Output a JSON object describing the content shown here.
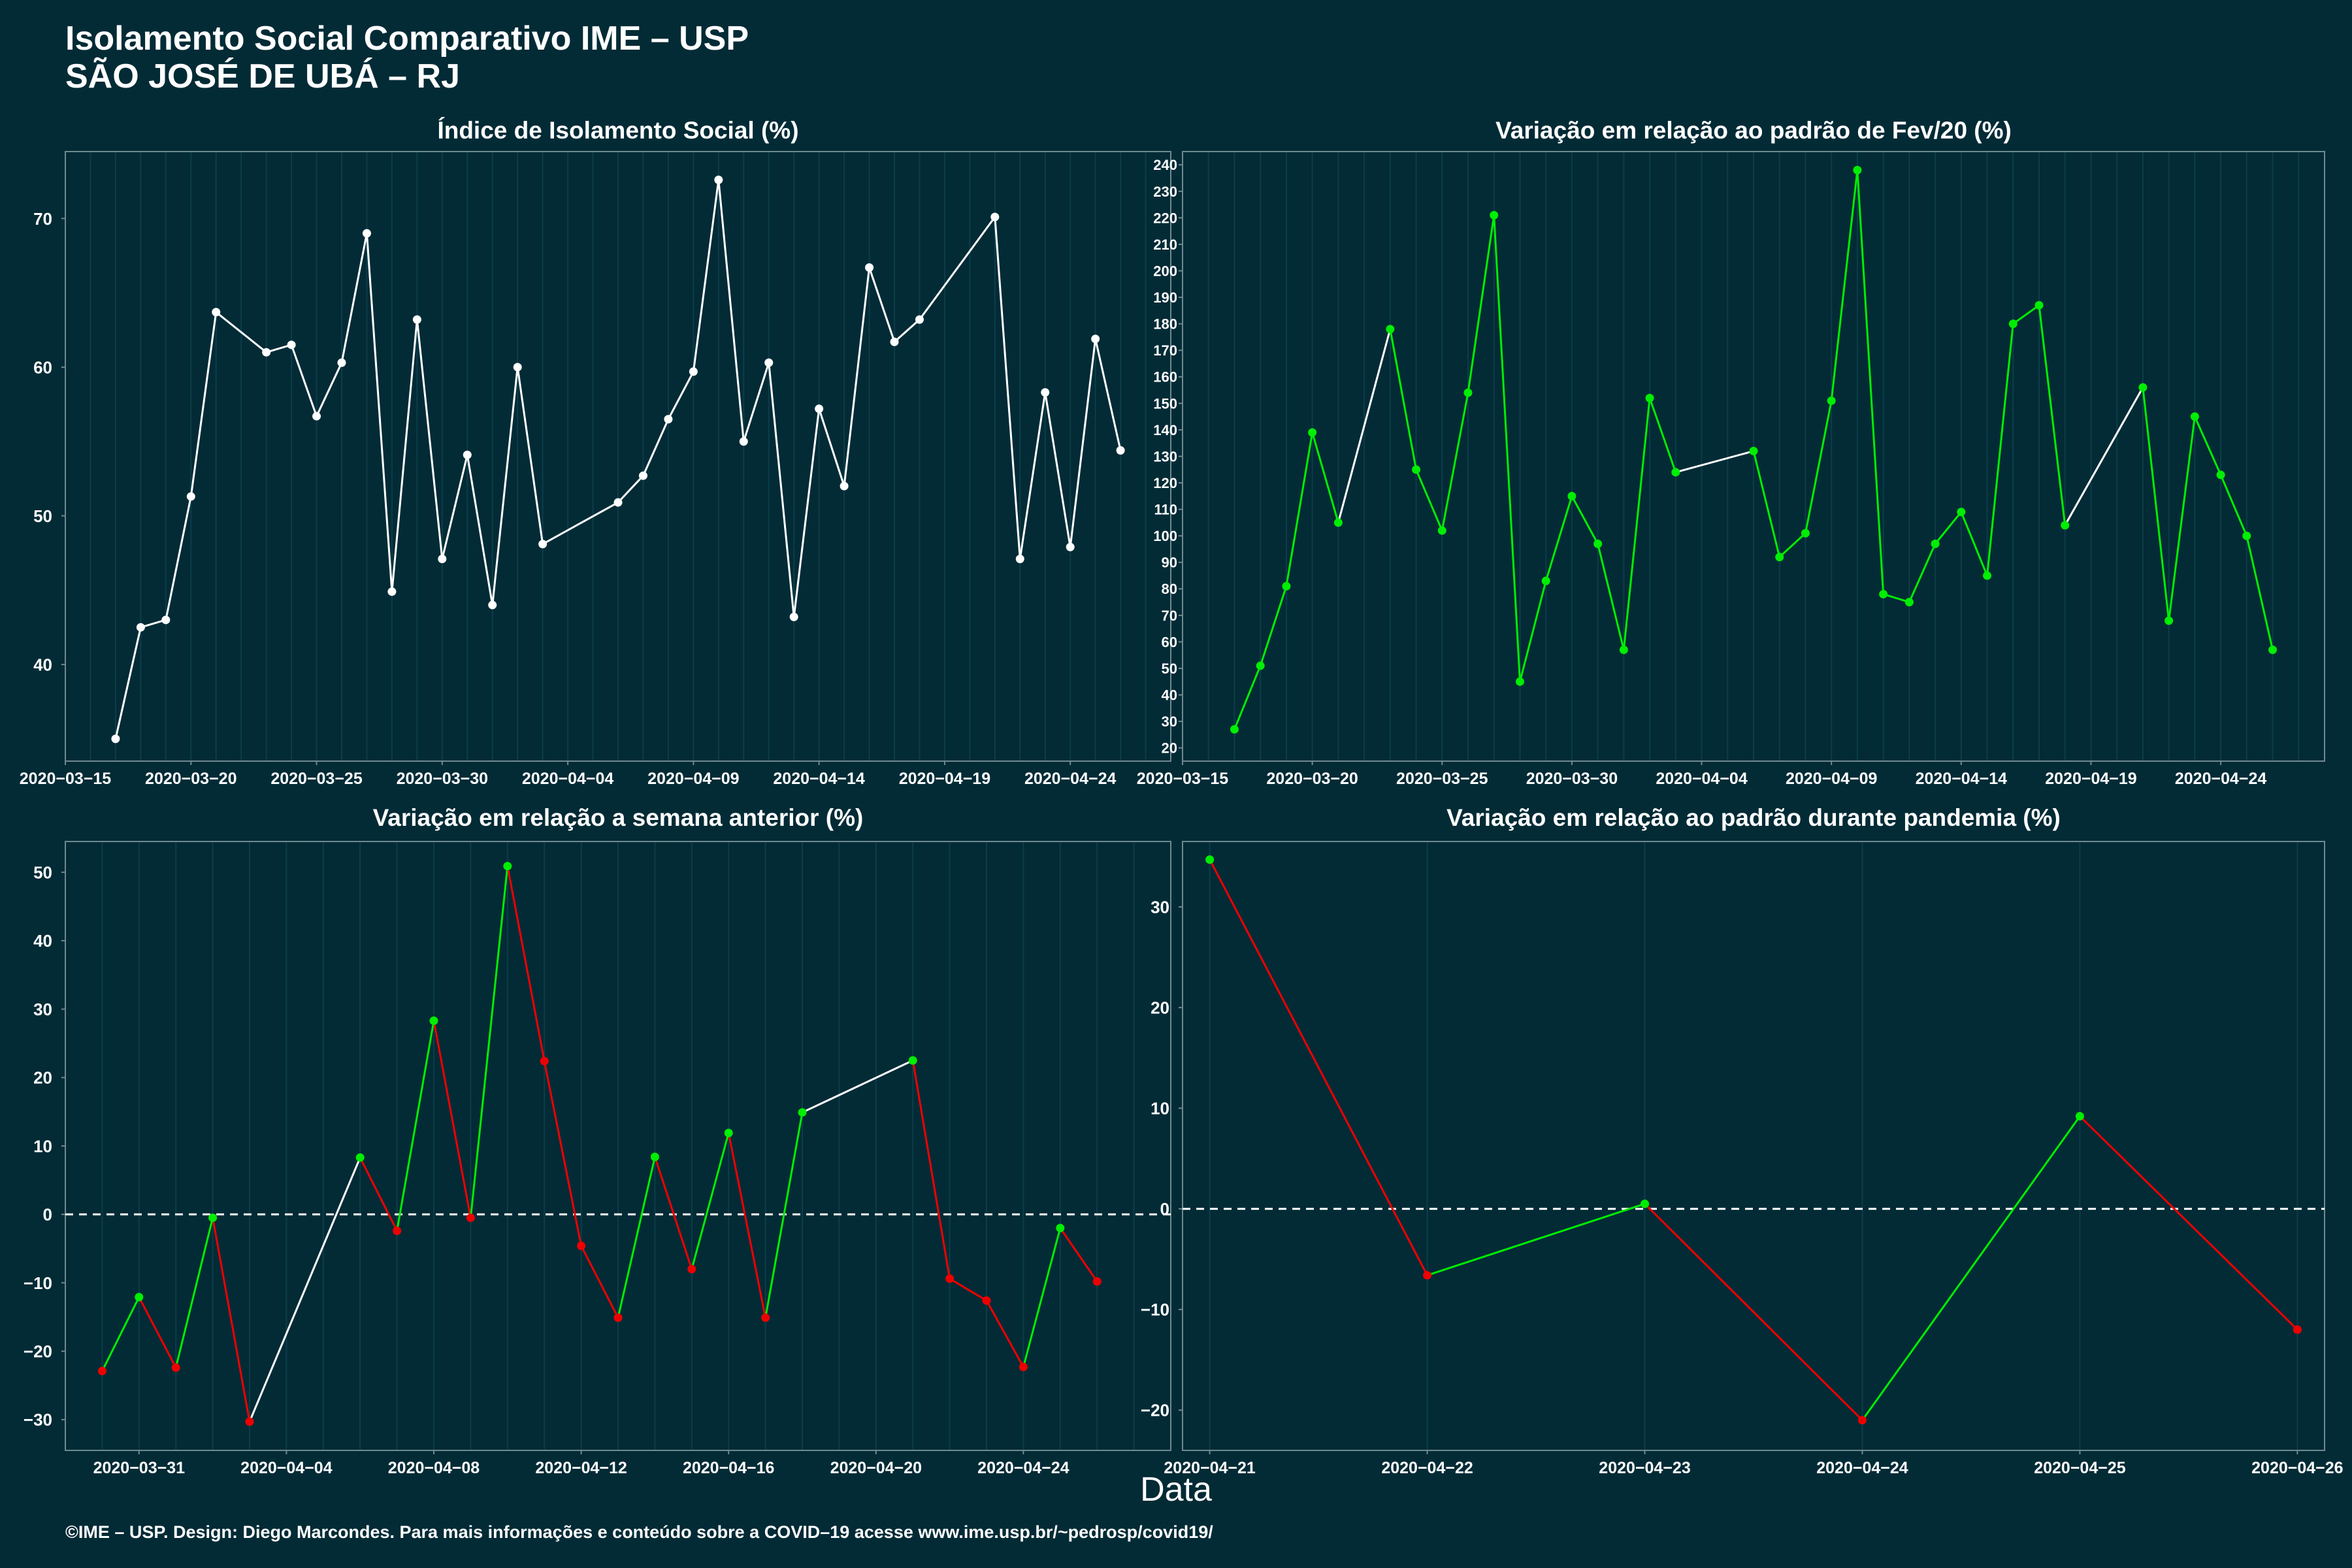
{
  "header": {
    "title_line1": "Isolamento Social Comparativo IME – USP",
    "title_line2": "SÃO JOSÉ DE UBÁ – RJ"
  },
  "x_axis_label": "Data",
  "footer": "©IME – USP. Design: Diego Marcondes. Para mais informações e conteúdo sobre a COVID–19 acesse www.ime.usp.br/~pedrosp/covid19/",
  "colors": {
    "background": "#022b36",
    "neutral": "#ffffff",
    "up": "#00ee00",
    "down": "#ee0000",
    "grid": "#0c3d49",
    "frame": "#6f8a90"
  },
  "chart_data": [
    {
      "id": "isolamento",
      "type": "line",
      "title": "Índice de Isolamento Social (%)",
      "x_start": "2020-03-15",
      "x_domain": [
        "2020-03-15",
        "2020-04-28"
      ],
      "y_domain": [
        33.5,
        74.5
      ],
      "x_ticks": [
        "2020-03-15",
        "2020-03-20",
        "2020-03-25",
        "2020-03-30",
        "2020-04-04",
        "2020-04-09",
        "2020-04-14",
        "2020-04-19",
        "2020-04-24"
      ],
      "y_ticks": [
        40,
        50,
        60,
        70
      ],
      "zero_line": false,
      "color_mode": "white",
      "points": [
        {
          "x": "2020-03-17",
          "y": 35.0
        },
        {
          "x": "2020-03-18",
          "y": 42.5
        },
        {
          "x": "2020-03-19",
          "y": 43.0
        },
        {
          "x": "2020-03-20",
          "y": 51.3
        },
        {
          "x": "2020-03-21",
          "y": 63.7
        },
        {
          "x": "2020-03-23",
          "y": 61.0
        },
        {
          "x": "2020-03-24",
          "y": 61.5
        },
        {
          "x": "2020-03-25",
          "y": 56.7
        },
        {
          "x": "2020-03-26",
          "y": 60.3
        },
        {
          "x": "2020-03-27",
          "y": 69.0
        },
        {
          "x": "2020-03-28",
          "y": 44.9
        },
        {
          "x": "2020-03-29",
          "y": 63.2
        },
        {
          "x": "2020-03-30",
          "y": 47.1
        },
        {
          "x": "2020-03-31",
          "y": 54.1
        },
        {
          "x": "2020-04-01",
          "y": 44.0
        },
        {
          "x": "2020-04-02",
          "y": 60.0
        },
        {
          "x": "2020-04-03",
          "y": 48.1
        },
        {
          "x": "2020-04-06",
          "y": 50.9
        },
        {
          "x": "2020-04-07",
          "y": 52.7
        },
        {
          "x": "2020-04-08",
          "y": 56.5
        },
        {
          "x": "2020-04-09",
          "y": 59.7
        },
        {
          "x": "2020-04-10",
          "y": 72.6
        },
        {
          "x": "2020-04-11",
          "y": 55.0
        },
        {
          "x": "2020-04-12",
          "y": 60.3
        },
        {
          "x": "2020-04-13",
          "y": 43.2
        },
        {
          "x": "2020-04-14",
          "y": 57.2
        },
        {
          "x": "2020-04-15",
          "y": 52.0
        },
        {
          "x": "2020-04-16",
          "y": 66.7
        },
        {
          "x": "2020-04-17",
          "y": 61.7
        },
        {
          "x": "2020-04-18",
          "y": 63.2
        },
        {
          "x": "2020-04-21",
          "y": 70.1
        },
        {
          "x": "2020-04-22",
          "y": 47.1
        },
        {
          "x": "2020-04-23",
          "y": 58.3
        },
        {
          "x": "2020-04-24",
          "y": 47.9
        },
        {
          "x": "2020-04-25",
          "y": 61.9
        },
        {
          "x": "2020-04-26",
          "y": 54.4
        }
      ]
    },
    {
      "id": "fev20",
      "type": "line",
      "title": "Variação em relação ao padrão de Fev/20 (%)",
      "x_start": "2020-03-15",
      "x_domain": [
        "2020-03-15",
        "2020-04-28"
      ],
      "y_domain": [
        15,
        245
      ],
      "x_ticks": [
        "2020-03-15",
        "2020-03-20",
        "2020-03-25",
        "2020-03-30",
        "2020-04-04",
        "2020-04-09",
        "2020-04-14",
        "2020-04-19",
        "2020-04-24"
      ],
      "y_ticks": [
        20,
        30,
        40,
        50,
        60,
        70,
        80,
        90,
        100,
        110,
        120,
        130,
        140,
        150,
        160,
        170,
        180,
        190,
        200,
        210,
        220,
        230,
        240
      ],
      "zero_line": false,
      "color_mode": "green",
      "points": [
        {
          "x": "2020-03-17",
          "y": 27
        },
        {
          "x": "2020-03-18",
          "y": 51
        },
        {
          "x": "2020-03-19",
          "y": 81
        },
        {
          "x": "2020-03-20",
          "y": 139
        },
        {
          "x": "2020-03-21",
          "y": 105
        },
        {
          "x": "2020-03-23",
          "y": 178
        },
        {
          "x": "2020-03-24",
          "y": 125
        },
        {
          "x": "2020-03-25",
          "y": 102
        },
        {
          "x": "2020-03-26",
          "y": 154
        },
        {
          "x": "2020-03-27",
          "y": 221
        },
        {
          "x": "2020-03-28",
          "y": 45
        },
        {
          "x": "2020-03-29",
          "y": 83
        },
        {
          "x": "2020-03-30",
          "y": 115
        },
        {
          "x": "2020-03-31",
          "y": 97
        },
        {
          "x": "2020-04-01",
          "y": 57
        },
        {
          "x": "2020-04-02",
          "y": 152
        },
        {
          "x": "2020-04-03",
          "y": 124
        },
        {
          "x": "2020-04-06",
          "y": 132
        },
        {
          "x": "2020-04-07",
          "y": 92
        },
        {
          "x": "2020-04-08",
          "y": 101
        },
        {
          "x": "2020-04-09",
          "y": 151
        },
        {
          "x": "2020-04-10",
          "y": 238
        },
        {
          "x": "2020-04-11",
          "y": 78
        },
        {
          "x": "2020-04-12",
          "y": 75
        },
        {
          "x": "2020-04-13",
          "y": 97
        },
        {
          "x": "2020-04-14",
          "y": 109
        },
        {
          "x": "2020-04-15",
          "y": 85
        },
        {
          "x": "2020-04-16",
          "y": 180
        },
        {
          "x": "2020-04-17",
          "y": 187
        },
        {
          "x": "2020-04-18",
          "y": 104
        },
        {
          "x": "2020-04-21",
          "y": 156
        },
        {
          "x": "2020-04-22",
          "y": 68
        },
        {
          "x": "2020-04-23",
          "y": 145
        },
        {
          "x": "2020-04-24",
          "y": 123
        },
        {
          "x": "2020-04-25",
          "y": 100
        },
        {
          "x": "2020-04-26",
          "y": 57
        }
      ]
    },
    {
      "id": "semana",
      "type": "line",
      "title": "Variação em relação a semana anterior (%)",
      "x_start": "2020-03-29",
      "x_domain": [
        "2020-03-29",
        "2020-04-28"
      ],
      "y_domain": [
        -34.5,
        54.5
      ],
      "x_ticks": [
        "2020-03-31",
        "2020-04-04",
        "2020-04-08",
        "2020-04-12",
        "2020-04-16",
        "2020-04-20",
        "2020-04-24"
      ],
      "y_ticks": [
        -30,
        -20,
        -10,
        0,
        10,
        20,
        30,
        40,
        50
      ],
      "zero_line": true,
      "color_mode": "updown",
      "points": [
        {
          "x": "2020-03-30",
          "y": -22.9
        },
        {
          "x": "2020-03-31",
          "y": -12.1
        },
        {
          "x": "2020-04-01",
          "y": -22.4
        },
        {
          "x": "2020-04-02",
          "y": -0.5
        },
        {
          "x": "2020-04-03",
          "y": -30.3
        },
        {
          "x": "2020-04-06",
          "y": 8.3
        },
        {
          "x": "2020-04-07",
          "y": -2.4
        },
        {
          "x": "2020-04-08",
          "y": 28.3
        },
        {
          "x": "2020-04-09",
          "y": -0.5
        },
        {
          "x": "2020-04-10",
          "y": 50.9
        },
        {
          "x": "2020-04-11",
          "y": 22.4
        },
        {
          "x": "2020-04-12",
          "y": -4.6
        },
        {
          "x": "2020-04-13",
          "y": -15.1
        },
        {
          "x": "2020-04-14",
          "y": 8.4
        },
        {
          "x": "2020-04-15",
          "y": -8.0
        },
        {
          "x": "2020-04-16",
          "y": 11.9
        },
        {
          "x": "2020-04-17",
          "y": -15.1
        },
        {
          "x": "2020-04-18",
          "y": 14.9
        },
        {
          "x": "2020-04-21",
          "y": 22.5
        },
        {
          "x": "2020-04-22",
          "y": -9.4
        },
        {
          "x": "2020-04-23",
          "y": -12.6
        },
        {
          "x": "2020-04-24",
          "y": -22.3
        },
        {
          "x": "2020-04-25",
          "y": -2.0
        },
        {
          "x": "2020-04-26",
          "y": -9.8
        }
      ]
    },
    {
      "id": "pandemia",
      "type": "line",
      "title": "Variação em relação ao padrão durante pandemia (%)",
      "x_start": "2020-04-21",
      "x_domain": [
        "2020-04-20 21:00",
        "2020-04-26 03:00"
      ],
      "y_domain": [
        -24,
        36.5
      ],
      "x_ticks": [
        "2020-04-21",
        "2020-04-22",
        "2020-04-23",
        "2020-04-24",
        "2020-04-25",
        "2020-04-26"
      ],
      "y_ticks": [
        -20,
        -10,
        0,
        10,
        20,
        30
      ],
      "zero_line": true,
      "color_mode": "updown",
      "points": [
        {
          "x": "2020-04-21",
          "y": 34.7
        },
        {
          "x": "2020-04-22",
          "y": -6.6
        },
        {
          "x": "2020-04-23",
          "y": 0.5
        },
        {
          "x": "2020-04-24",
          "y": -21.0
        },
        {
          "x": "2020-04-25",
          "y": 9.2
        },
        {
          "x": "2020-04-26",
          "y": -12.0
        }
      ]
    }
  ]
}
